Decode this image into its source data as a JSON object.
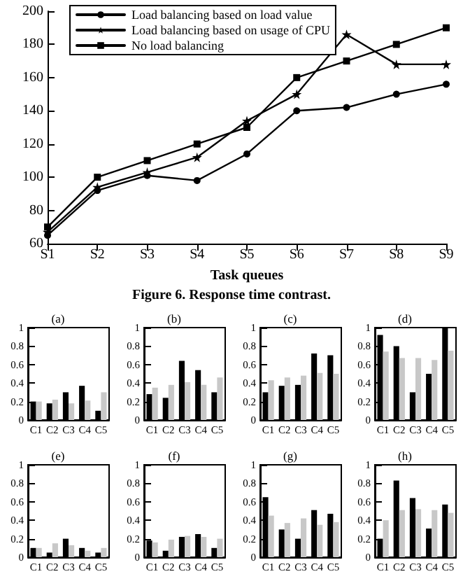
{
  "chart_data": [
    {
      "type": "line",
      "xlabel": "Task queues",
      "annotations": [
        "Figure 6. Response time contrast."
      ],
      "categories": [
        "S1",
        "S2",
        "S3",
        "S4",
        "S5",
        "S6",
        "S7",
        "S8",
        "S9"
      ],
      "ylim": [
        60,
        200
      ],
      "yticks": [
        60,
        80,
        100,
        120,
        140,
        160,
        180,
        200
      ],
      "grid": false,
      "legend": "top left",
      "line_style": "solid",
      "series": [
        {
          "name": "Load balancing based on load value",
          "color": "#000000",
          "marker": "circle",
          "values": [
            65,
            92,
            101,
            98,
            114,
            140,
            142,
            150,
            156
          ]
        },
        {
          "name": "Load balancing based on usage of CPU",
          "color": "#000000",
          "marker": "star",
          "values": [
            67,
            94,
            103,
            112,
            134,
            150,
            186,
            168,
            168
          ]
        },
        {
          "name": "No load balancing",
          "color": "#000000",
          "marker": "square",
          "values": [
            70,
            100,
            110,
            120,
            130,
            160,
            170,
            180,
            190
          ]
        }
      ]
    },
    {
      "type": "bar",
      "title": "(a)",
      "categories": [
        "C1",
        "C2",
        "C3",
        "C4",
        "C5"
      ],
      "ylim": [
        0,
        1
      ],
      "yticks": [
        0,
        0.2,
        0.4,
        0.6,
        0.8,
        1
      ],
      "grid": false,
      "series": [
        {
          "color": "#000000",
          "values": [
            0.2,
            0.18,
            0.3,
            0.37,
            0.1
          ]
        },
        {
          "color": "#c8c8c8",
          "values": [
            0.2,
            0.22,
            0.18,
            0.21,
            0.3
          ]
        }
      ]
    },
    {
      "type": "bar",
      "title": "(b)",
      "categories": [
        "C1",
        "C2",
        "C3",
        "C4",
        "C5"
      ],
      "ylim": [
        0,
        1
      ],
      "yticks": [
        0,
        0.2,
        0.4,
        0.6,
        0.8,
        1
      ],
      "grid": false,
      "series": [
        {
          "color": "#000000",
          "values": [
            0.28,
            0.24,
            0.64,
            0.54,
            0.3
          ]
        },
        {
          "color": "#c8c8c8",
          "values": [
            0.35,
            0.38,
            0.41,
            0.38,
            0.46
          ]
        }
      ]
    },
    {
      "type": "bar",
      "title": "(c)",
      "categories": [
        "C1",
        "C2",
        "C3",
        "C4",
        "C5"
      ],
      "ylim": [
        0,
        1
      ],
      "yticks": [
        0,
        0.2,
        0.4,
        0.6,
        0.8,
        1
      ],
      "grid": false,
      "series": [
        {
          "color": "#000000",
          "values": [
            0.3,
            0.37,
            0.38,
            0.72,
            0.7
          ]
        },
        {
          "color": "#c8c8c8",
          "values": [
            0.43,
            0.46,
            0.48,
            0.51,
            0.5
          ]
        }
      ]
    },
    {
      "type": "bar",
      "title": "(d)",
      "categories": [
        "C1",
        "C2",
        "C3",
        "C4",
        "C5"
      ],
      "ylim": [
        0,
        1
      ],
      "yticks": [
        0,
        0.2,
        0.4,
        0.6,
        0.8,
        1
      ],
      "grid": false,
      "series": [
        {
          "color": "#000000",
          "values": [
            0.92,
            0.8,
            0.3,
            0.5,
            1.0
          ]
        },
        {
          "color": "#c8c8c8",
          "values": [
            0.74,
            0.67,
            0.67,
            0.65,
            0.75
          ]
        }
      ]
    },
    {
      "type": "bar",
      "title": "(e)",
      "categories": [
        "C1",
        "C2",
        "C3",
        "C4",
        "C5"
      ],
      "ylim": [
        0,
        1
      ],
      "yticks": [
        0,
        0.2,
        0.4,
        0.6,
        0.8,
        1
      ],
      "grid": false,
      "series": [
        {
          "color": "#000000",
          "values": [
            0.1,
            0.05,
            0.2,
            0.1,
            0.05
          ]
        },
        {
          "color": "#c8c8c8",
          "values": [
            0.1,
            0.15,
            0.13,
            0.07,
            0.1
          ]
        }
      ]
    },
    {
      "type": "bar",
      "title": "(f)",
      "categories": [
        "C1",
        "C2",
        "C3",
        "C4",
        "C5"
      ],
      "ylim": [
        0,
        1
      ],
      "yticks": [
        0,
        0.2,
        0.4,
        0.6,
        0.8,
        1
      ],
      "grid": false,
      "series": [
        {
          "color": "#000000",
          "values": [
            0.18,
            0.07,
            0.22,
            0.25,
            0.1
          ]
        },
        {
          "color": "#c8c8c8",
          "values": [
            0.16,
            0.19,
            0.23,
            0.22,
            0.2
          ]
        }
      ]
    },
    {
      "type": "bar",
      "title": "(g)",
      "categories": [
        "C1",
        "C2",
        "C3",
        "C4",
        "C5"
      ],
      "ylim": [
        0,
        1
      ],
      "yticks": [
        0,
        0.2,
        0.4,
        0.6,
        0.8,
        1
      ],
      "grid": false,
      "series": [
        {
          "color": "#000000",
          "values": [
            0.65,
            0.3,
            0.2,
            0.51,
            0.47
          ]
        },
        {
          "color": "#c8c8c8",
          "values": [
            0.45,
            0.37,
            0.42,
            0.35,
            0.38
          ]
        }
      ]
    },
    {
      "type": "bar",
      "title": "(h)",
      "categories": [
        "C1",
        "C2",
        "C3",
        "C4",
        "C5"
      ],
      "ylim": [
        0,
        1
      ],
      "yticks": [
        0,
        0.2,
        0.4,
        0.6,
        0.8,
        1
      ],
      "grid": false,
      "series": [
        {
          "color": "#000000",
          "values": [
            0.2,
            0.83,
            0.64,
            0.31,
            0.57
          ]
        },
        {
          "color": "#c8c8c8",
          "values": [
            0.4,
            0.51,
            0.52,
            0.51,
            0.48
          ]
        }
      ]
    }
  ]
}
